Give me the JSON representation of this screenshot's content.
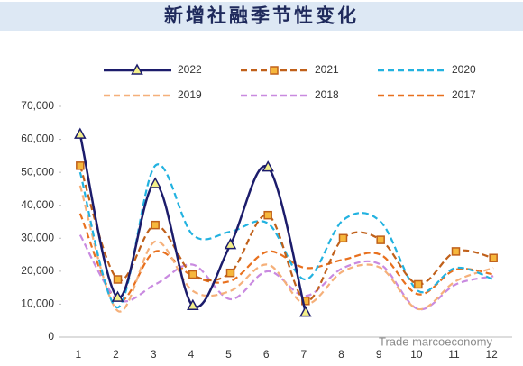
{
  "chart_data": {
    "type": "line",
    "title": "新增社融季节性变化",
    "categories": [
      "1",
      "2",
      "3",
      "4",
      "5",
      "6",
      "7",
      "8",
      "9",
      "10",
      "11",
      "12"
    ],
    "series": [
      {
        "name": "2022",
        "color": "#1c1c6b",
        "dash": false,
        "marker": "triangle",
        "values": [
          61500,
          12000,
          46500,
          9500,
          28000,
          51500,
          7500,
          null,
          null,
          null,
          null,
          null
        ]
      },
      {
        "name": "2021",
        "color": "#c0601a",
        "dash": true,
        "marker": "square",
        "values": [
          52000,
          17500,
          34000,
          19000,
          19500,
          37000,
          11000,
          30000,
          29500,
          16000,
          26000,
          24000
        ]
      },
      {
        "name": "2020",
        "color": "#22b2e0",
        "dash": true,
        "marker": null,
        "values": [
          50000,
          9000,
          52000,
          31000,
          32000,
          34500,
          17500,
          35500,
          35000,
          14000,
          21000,
          17500
        ]
      },
      {
        "name": "2019",
        "color": "#f5b07a",
        "dash": true,
        "marker": null,
        "values": [
          46000,
          8000,
          29000,
          14000,
          14000,
          22000,
          10000,
          20000,
          21000,
          8500,
          17000,
          21000
        ]
      },
      {
        "name": "2018",
        "color": "#c98ae0",
        "dash": true,
        "marker": null,
        "values": [
          31000,
          11500,
          16000,
          22000,
          11500,
          20000,
          12500,
          21000,
          22000,
          8500,
          16000,
          18500
        ]
      },
      {
        "name": "2017",
        "color": "#e8701e",
        "dash": true,
        "marker": null,
        "values": [
          37500,
          11000,
          26000,
          18500,
          17000,
          26000,
          21000,
          23500,
          25000,
          13000,
          20500,
          19000
        ]
      }
    ],
    "ylim": [
      0,
      70000
    ],
    "yticks": [
      0,
      {
        "value": 10000,
        "label": "10,000"
      },
      {
        "value": 20000,
        "label": "20,000"
      },
      {
        "value": 30000,
        "label": "30,000"
      },
      {
        "value": 40000,
        "label": "40,000"
      },
      {
        "value": 50000,
        "label": "50,000"
      },
      {
        "value": 60000,
        "label": "60,000"
      },
      {
        "value": 70000,
        "label": "70,000"
      }
    ],
    "grid": false,
    "watermark": "Trade marcoeconomy"
  }
}
